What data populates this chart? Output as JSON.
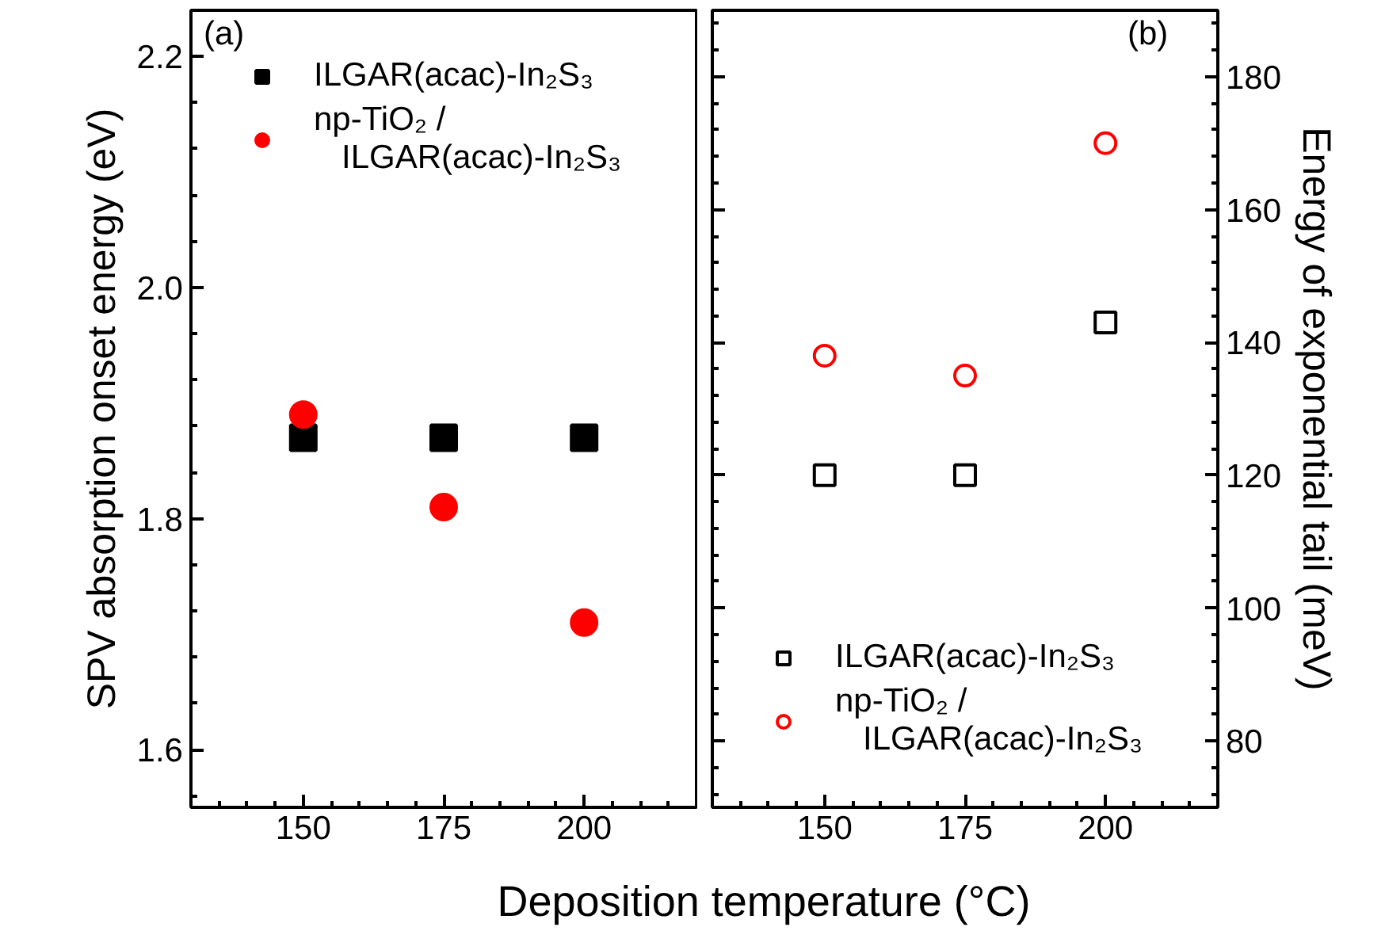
{
  "chart_data": [
    {
      "type": "scatter",
      "xlabel": "Deposition temperature (°C)",
      "ylabel": "SPV absorption onset energy (eV)",
      "x": [
        150,
        175,
        200
      ],
      "xlim": [
        130,
        220
      ],
      "xticks": [
        150,
        175,
        200
      ],
      "ylim": [
        1.55,
        2.24
      ],
      "yticks": [
        1.6,
        1.8,
        {
          "value": 2.0,
          "label": "2.0"
        },
        2.2
      ],
      "legend": "top left",
      "annotations": [
        "(a)"
      ],
      "series": [
        {
          "name": "ILGAR(acac)-In₂S₃",
          "color": "#000000",
          "marker": "square",
          "values": [
            1.87,
            1.87,
            1.87
          ]
        },
        {
          "name": "np-TiO₂ / ILGAR(acac)-In₂S₃",
          "color": "#ff0000",
          "marker": "circle",
          "values": [
            1.89,
            1.81,
            1.71
          ]
        }
      ]
    },
    {
      "type": "scatter",
      "ylabel": "Energy of exponential tail (meV)",
      "x": [
        150,
        175,
        200
      ],
      "xlim": [
        130,
        220
      ],
      "xticks": [
        150,
        175,
        200
      ],
      "ylim": [
        70,
        190
      ],
      "yticks": [
        80,
        100,
        120,
        140,
        160,
        180
      ],
      "legend": "bottom left",
      "annotations": [
        "(b)"
      ],
      "series": [
        {
          "name": "ILGAR(acac)-In₂S₃",
          "color": "#000000",
          "marker": "square",
          "values": [
            120,
            120,
            143
          ]
        },
        {
          "name": "np-TiO₂ / ILGAR(acac)-In₂S₃",
          "color": "#ff0000",
          "marker": "circle",
          "values": [
            138,
            135,
            170
          ]
        }
      ]
    }
  ]
}
